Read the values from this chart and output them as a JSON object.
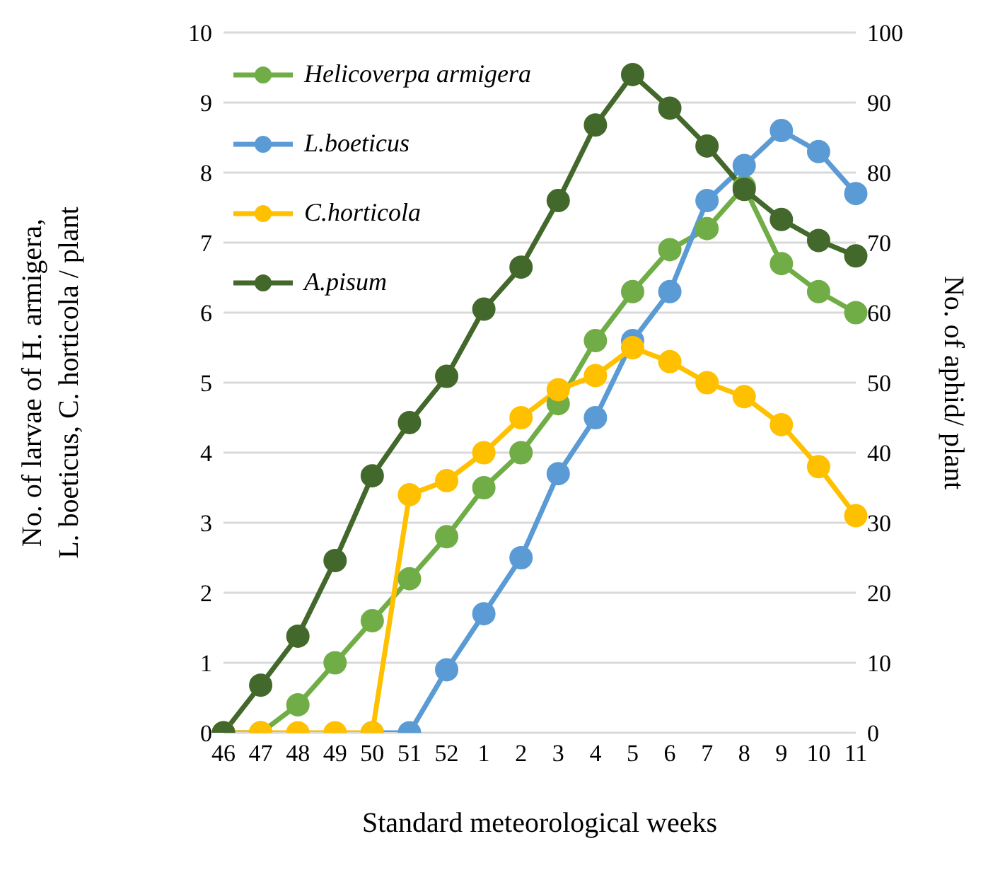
{
  "chart_data": {
    "type": "line",
    "xlabel": "Standard meteorological weeks",
    "ylabel": "No. of larvae of H. armigera, L. boeticus, C. horticola / plant",
    "y2label": "No. of aphid/ plant",
    "categories": [
      "46",
      "47",
      "48",
      "49",
      "50",
      "51",
      "52",
      "1",
      "2",
      "3",
      "4",
      "5",
      "6",
      "7",
      "8",
      "9",
      "10",
      "11"
    ],
    "series": [
      {
        "name": "Helicoverpa armigera",
        "color": "#70ad47",
        "values": [
          0,
          0,
          0.4,
          1.0,
          1.6,
          2.2,
          2.8,
          3.5,
          4.0,
          4.7,
          5.6,
          6.3,
          6.9,
          7.2,
          7.8,
          6.7,
          6.3,
          6.0
        ]
      },
      {
        "name": "L.boeticus",
        "color": "#5b9bd5",
        "values": [
          null,
          null,
          null,
          null,
          0,
          0,
          0.9,
          1.7,
          2.5,
          3.7,
          4.5,
          5.6,
          6.3,
          7.6,
          8.1,
          8.6,
          8.3,
          7.7
        ]
      },
      {
        "name": "C.horticola",
        "color": "#ffc000",
        "values": [
          0,
          0,
          0,
          0,
          0,
          3.4,
          3.6,
          4.0,
          4.5,
          4.9,
          5.1,
          5.5,
          5.3,
          5.0,
          4.8,
          4.4,
          3.8,
          3.1
        ]
      },
      {
        "name": "A.pisum",
        "color": "#43682b",
        "axis": "y2",
        "values": [
          0,
          6.8,
          13.8,
          24.6,
          36.7,
          44.3,
          50.9,
          60.5,
          66.5,
          76,
          86.8,
          94,
          89.2,
          83.8,
          77.6,
          73.3,
          70.3,
          68.1
        ]
      }
    ],
    "ylim": [
      0,
      10
    ],
    "yticks": [
      0,
      1,
      2,
      3,
      4,
      5,
      6,
      7,
      8,
      9,
      10
    ],
    "y2lim": [
      0,
      100
    ],
    "y2ticks": [
      0,
      10,
      20,
      30,
      40,
      50,
      60,
      70,
      80,
      90,
      100
    ],
    "grid": "y",
    "legend": "top left",
    "marker": "circle",
    "line_style": "solid"
  }
}
